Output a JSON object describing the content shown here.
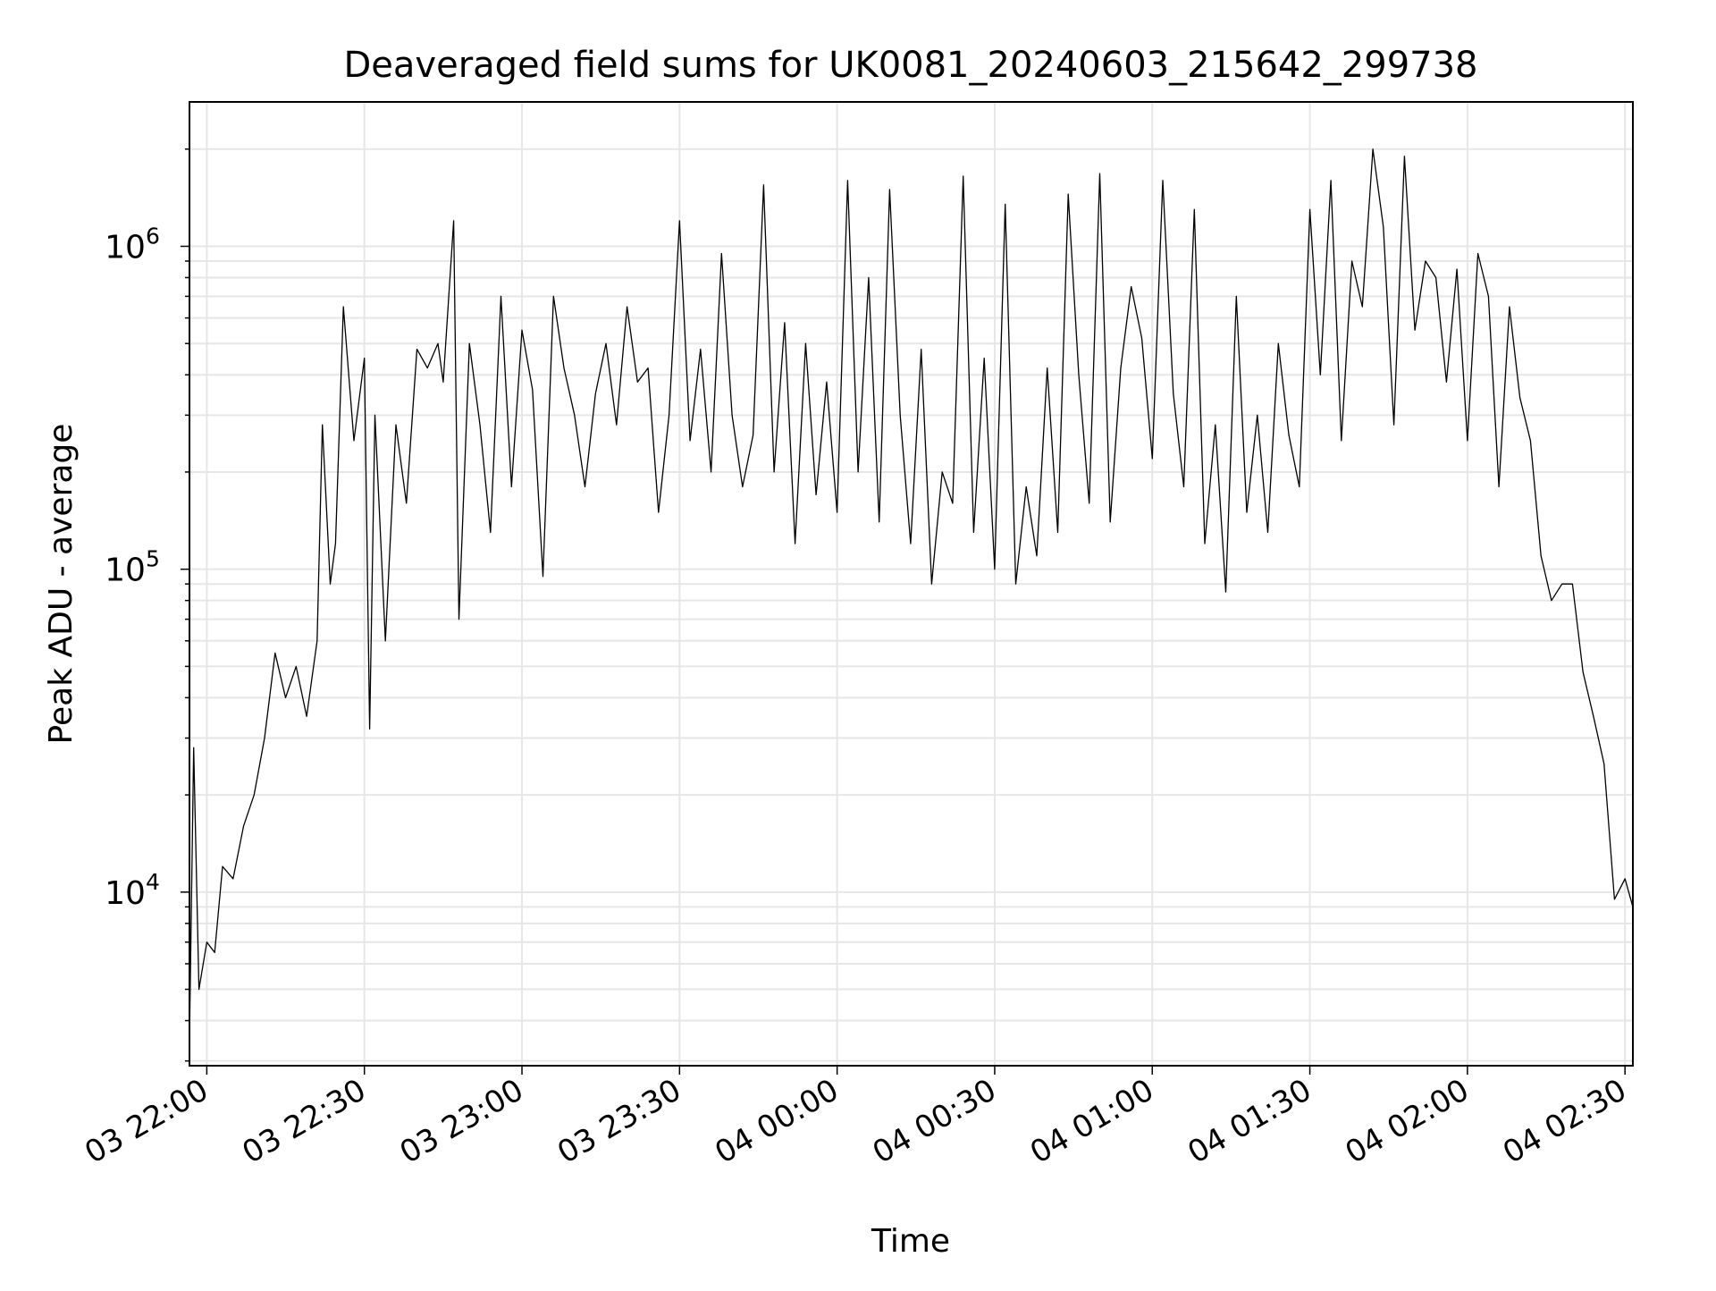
{
  "chart_data": {
    "type": "line",
    "title": "Deaveraged field sums for UK0081_20240603_215642_299738",
    "xlabel": "Time",
    "ylabel": "Peak ADU - average",
    "yscale": "log",
    "ylim": [
      2900,
      2800000
    ],
    "xlim": [
      "2024-06-03 21:56:42",
      "2024-06-04 02:31:30"
    ],
    "grid": true,
    "line_color": "#000000",
    "grid_color": "#e6e6e6",
    "x_ticks": [
      {
        "time": "2024-06-03 22:00",
        "label": "03 22:00"
      },
      {
        "time": "2024-06-03 22:30",
        "label": "03 22:30"
      },
      {
        "time": "2024-06-03 23:00",
        "label": "03 23:00"
      },
      {
        "time": "2024-06-03 23:30",
        "label": "03 23:30"
      },
      {
        "time": "2024-06-04 00:00",
        "label": "04 00:00"
      },
      {
        "time": "2024-06-04 00:30",
        "label": "04 00:30"
      },
      {
        "time": "2024-06-04 01:00",
        "label": "04 01:00"
      },
      {
        "time": "2024-06-04 01:30",
        "label": "04 01:30"
      },
      {
        "time": "2024-06-04 02:00",
        "label": "04 02:00"
      },
      {
        "time": "2024-06-04 02:30",
        "label": "04 02:30"
      }
    ],
    "y_ticks": [
      {
        "value": 10000,
        "base": "10",
        "exp": "4"
      },
      {
        "value": 100000,
        "base": "10",
        "exp": "5"
      },
      {
        "value": 1000000,
        "base": "10",
        "exp": "6"
      }
    ],
    "series": [
      {
        "x": [
          "2024-06-03 21:56:42",
          "2024-06-03 21:57:30",
          "2024-06-03 21:58:30",
          "2024-06-03 22:00:00",
          "2024-06-03 22:01:30",
          "2024-06-03 22:03:00",
          "2024-06-03 22:05:00",
          "2024-06-03 22:07:00",
          "2024-06-03 22:09:00",
          "2024-06-03 22:11:00",
          "2024-06-03 22:13:00",
          "2024-06-03 22:15:00",
          "2024-06-03 22:17:00",
          "2024-06-03 22:19:00",
          "2024-06-03 22:21:00",
          "2024-06-03 22:22:00",
          "2024-06-03 22:23:30",
          "2024-06-03 22:24:30",
          "2024-06-03 22:26:00",
          "2024-06-03 22:28:00",
          "2024-06-03 22:30:00",
          "2024-06-03 22:31:00",
          "2024-06-03 22:32:00",
          "2024-06-03 22:34:00",
          "2024-06-03 22:36:00",
          "2024-06-03 22:38:00",
          "2024-06-03 22:40:00",
          "2024-06-03 22:42:00",
          "2024-06-03 22:44:00",
          "2024-06-03 22:45:00",
          "2024-06-03 22:47:00",
          "2024-06-03 22:48:00",
          "2024-06-03 22:50:00",
          "2024-06-03 22:52:00",
          "2024-06-03 22:54:00",
          "2024-06-03 22:56:00",
          "2024-06-03 22:58:00",
          "2024-06-03 23:00:00",
          "2024-06-03 23:02:00",
          "2024-06-03 23:04:00",
          "2024-06-03 23:06:00",
          "2024-06-03 23:08:00",
          "2024-06-03 23:10:00",
          "2024-06-03 23:12:00",
          "2024-06-03 23:14:00",
          "2024-06-03 23:16:00",
          "2024-06-03 23:18:00",
          "2024-06-03 23:20:00",
          "2024-06-03 23:22:00",
          "2024-06-03 23:24:00",
          "2024-06-03 23:26:00",
          "2024-06-03 23:28:00",
          "2024-06-03 23:30:00",
          "2024-06-03 23:32:00",
          "2024-06-03 23:34:00",
          "2024-06-03 23:36:00",
          "2024-06-03 23:38:00",
          "2024-06-03 23:40:00",
          "2024-06-03 23:42:00",
          "2024-06-03 23:44:00",
          "2024-06-03 23:46:00",
          "2024-06-03 23:48:00",
          "2024-06-03 23:50:00",
          "2024-06-03 23:52:00",
          "2024-06-03 23:54:00",
          "2024-06-03 23:56:00",
          "2024-06-03 23:58:00",
          "2024-06-04 00:00:00",
          "2024-06-04 00:02:00",
          "2024-06-04 00:04:00",
          "2024-06-04 00:06:00",
          "2024-06-04 00:08:00",
          "2024-06-04 00:10:00",
          "2024-06-04 00:12:00",
          "2024-06-04 00:14:00",
          "2024-06-04 00:16:00",
          "2024-06-04 00:18:00",
          "2024-06-04 00:20:00",
          "2024-06-04 00:22:00",
          "2024-06-04 00:24:00",
          "2024-06-04 00:26:00",
          "2024-06-04 00:28:00",
          "2024-06-04 00:30:00",
          "2024-06-04 00:32:00",
          "2024-06-04 00:34:00",
          "2024-06-04 00:36:00",
          "2024-06-04 00:38:00",
          "2024-06-04 00:40:00",
          "2024-06-04 00:42:00",
          "2024-06-04 00:44:00",
          "2024-06-04 00:46:00",
          "2024-06-04 00:48:00",
          "2024-06-04 00:50:00",
          "2024-06-04 00:52:00",
          "2024-06-04 00:54:00",
          "2024-06-04 00:56:00",
          "2024-06-04 00:58:00",
          "2024-06-04 01:00:00",
          "2024-06-04 01:02:00",
          "2024-06-04 01:04:00",
          "2024-06-04 01:06:00",
          "2024-06-04 01:08:00",
          "2024-06-04 01:10:00",
          "2024-06-04 01:12:00",
          "2024-06-04 01:14:00",
          "2024-06-04 01:16:00",
          "2024-06-04 01:18:00",
          "2024-06-04 01:20:00",
          "2024-06-04 01:22:00",
          "2024-06-04 01:24:00",
          "2024-06-04 01:26:00",
          "2024-06-04 01:28:00",
          "2024-06-04 01:30:00",
          "2024-06-04 01:32:00",
          "2024-06-04 01:34:00",
          "2024-06-04 01:36:00",
          "2024-06-04 01:38:00",
          "2024-06-04 01:40:00",
          "2024-06-04 01:42:00",
          "2024-06-04 01:44:00",
          "2024-06-04 01:46:00",
          "2024-06-04 01:48:00",
          "2024-06-04 01:50:00",
          "2024-06-04 01:52:00",
          "2024-06-04 01:54:00",
          "2024-06-04 01:56:00",
          "2024-06-04 01:58:00",
          "2024-06-04 02:00:00",
          "2024-06-04 02:02:00",
          "2024-06-04 02:04:00",
          "2024-06-04 02:06:00",
          "2024-06-04 02:08:00",
          "2024-06-04 02:10:00",
          "2024-06-04 02:12:00",
          "2024-06-04 02:14:00",
          "2024-06-04 02:16:00",
          "2024-06-04 02:18:00",
          "2024-06-04 02:20:00",
          "2024-06-04 02:22:00",
          "2024-06-04 02:24:00",
          "2024-06-04 02:26:00",
          "2024-06-04 02:28:00",
          "2024-06-04 02:30:00",
          "2024-06-04 02:31:30"
        ],
        "y": [
          3500,
          28000,
          5000,
          7000,
          6500,
          12000,
          11000,
          16000,
          20000,
          30000,
          55000,
          40000,
          50000,
          35000,
          60000,
          280000,
          90000,
          120000,
          650000,
          250000,
          450000,
          32000,
          300000,
          60000,
          280000,
          160000,
          480000,
          420000,
          500000,
          380000,
          1200000,
          70000,
          500000,
          280000,
          130000,
          700000,
          180000,
          550000,
          360000,
          95000,
          700000,
          420000,
          300000,
          180000,
          350000,
          500000,
          280000,
          650000,
          380000,
          420000,
          150000,
          300000,
          1200000,
          250000,
          480000,
          200000,
          950000,
          300000,
          180000,
          260000,
          1550000,
          200000,
          580000,
          120000,
          500000,
          170000,
          380000,
          150000,
          1600000,
          200000,
          800000,
          140000,
          1500000,
          300000,
          120000,
          480000,
          90000,
          200000,
          160000,
          1650000,
          130000,
          450000,
          100000,
          1350000,
          90000,
          180000,
          110000,
          420000,
          130000,
          1450000,
          400000,
          160000,
          1680000,
          140000,
          420000,
          750000,
          520000,
          220000,
          1600000,
          350000,
          180000,
          1300000,
          120000,
          280000,
          85000,
          700000,
          150000,
          300000,
          130000,
          500000,
          260000,
          180000,
          1300000,
          400000,
          1600000,
          250000,
          900000,
          650000,
          2000000,
          1150000,
          280000,
          1900000,
          550000,
          900000,
          800000,
          380000,
          850000,
          250000,
          950000,
          700000,
          180000,
          650000,
          340000,
          250000,
          110000,
          80000,
          90000,
          90000,
          48000,
          35000,
          25000,
          9500,
          11000,
          9000
        ]
      }
    ]
  }
}
